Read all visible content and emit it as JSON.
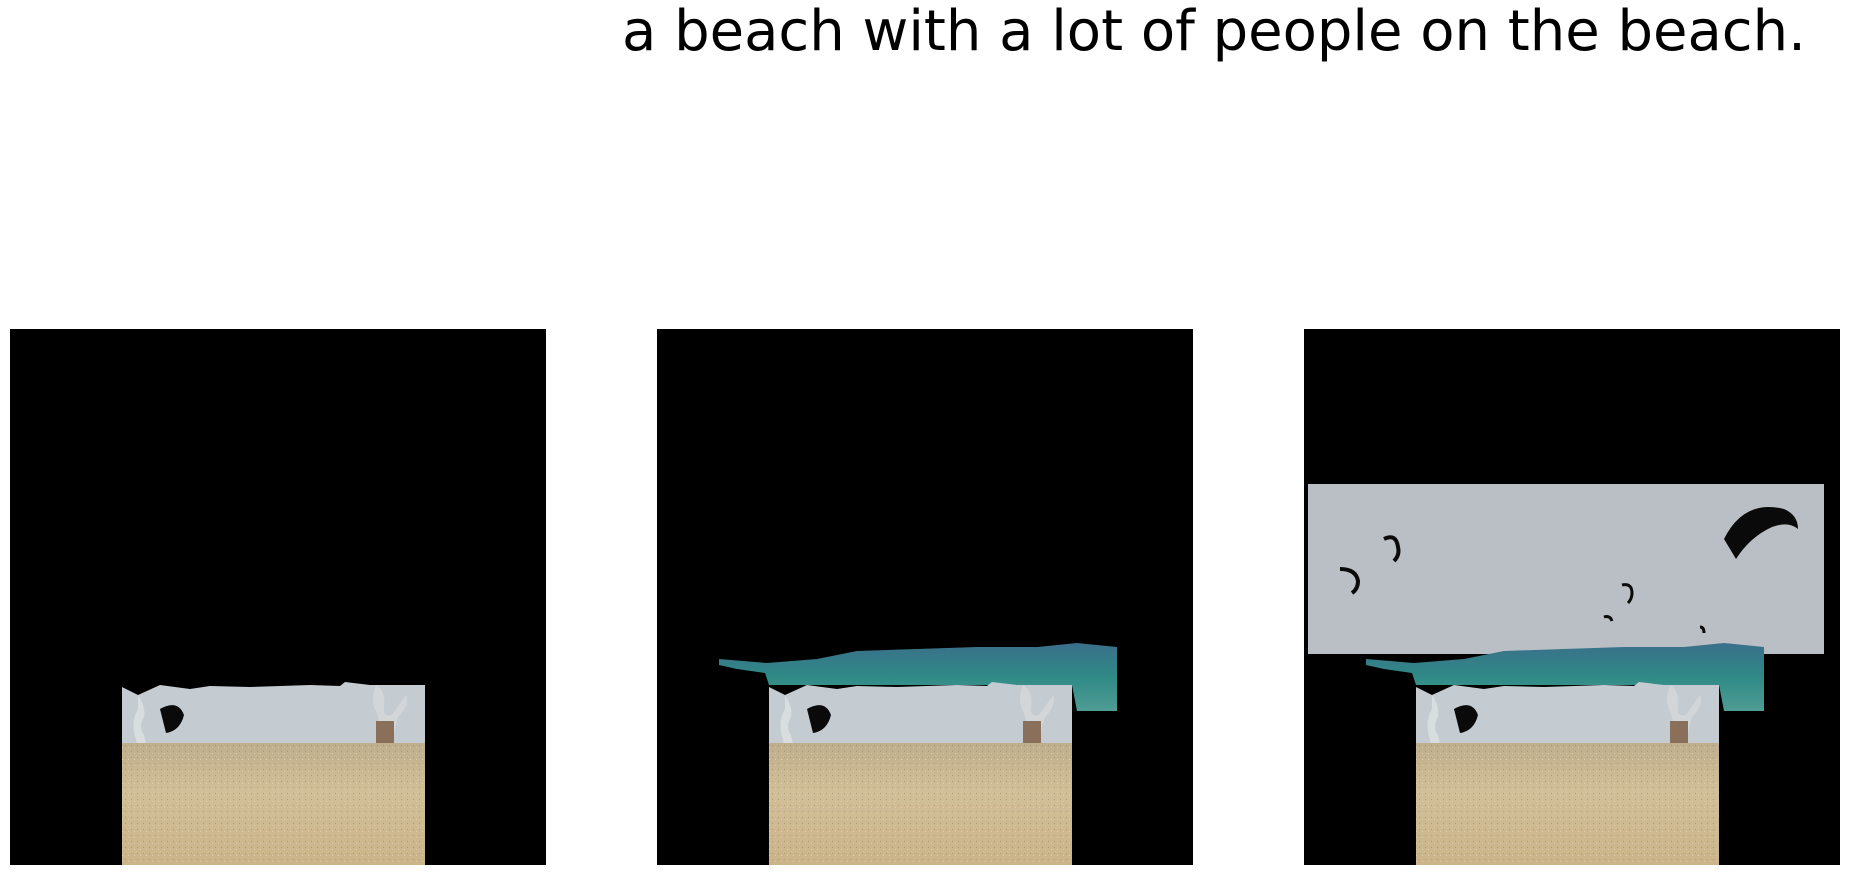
{
  "caption": "a beach with a lot of people on the beach.",
  "panels": [
    {
      "content": "sand-and-people"
    },
    {
      "content": "sand-people-and-sea"
    },
    {
      "content": "sand-people-sea-and-sky-with-kites"
    }
  ],
  "colors": {
    "background": "#ffffff",
    "mask": "#000000",
    "sand": "#c9b48f",
    "sky": "#b9bfc4",
    "sea": "#2f7f86",
    "kite": "#0a0a0a"
  }
}
